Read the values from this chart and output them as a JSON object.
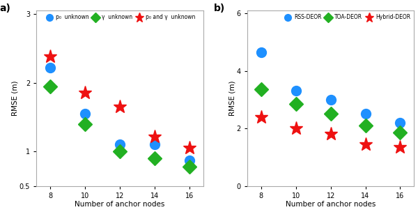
{
  "x": [
    8,
    10,
    12,
    14,
    16
  ],
  "panel_a": {
    "title": "a)",
    "xlabel": "Number of anchor nodes",
    "ylabel": "RMSE (m)",
    "ylim": [
      0.5,
      3.05
    ],
    "yticks": [
      0.5,
      1.0,
      2.0,
      3.0
    ],
    "yticklabels": [
      "0.5",
      "1",
      "2",
      "3"
    ],
    "series": [
      {
        "label": "p₀  unknown",
        "values": [
          2.22,
          1.55,
          1.1,
          1.1,
          0.87
        ],
        "color": "#1E90FF",
        "marker": "o",
        "markersize": 10
      },
      {
        "label": "γ  unknown",
        "values": [
          1.95,
          1.4,
          1.0,
          0.9,
          0.78
        ],
        "color": "#22B022",
        "marker": "D",
        "markersize": 10
      },
      {
        "label": "p₀ and γ  unknown",
        "values": [
          2.38,
          1.85,
          1.65,
          1.22,
          1.05
        ],
        "color": "#EE1111",
        "marker": "*",
        "markersize": 14
      }
    ],
    "legend_loc": "upper center",
    "legend_ncol": 3
  },
  "panel_b": {
    "title": "b)",
    "xlabel": "Number of anchor nodes",
    "ylabel": "RMSE (m)",
    "ylim": [
      0,
      6.1
    ],
    "yticks": [
      0,
      2,
      4,
      6
    ],
    "yticklabels": [
      "0",
      "2",
      "4",
      "6"
    ],
    "series": [
      {
        "label": "RSS-DEOR",
        "values": [
          4.65,
          3.3,
          3.0,
          2.5,
          2.2
        ],
        "color": "#1E90FF",
        "marker": "o",
        "markersize": 10
      },
      {
        "label": "TOA-DEOR",
        "values": [
          3.35,
          2.85,
          2.5,
          2.1,
          1.85
        ],
        "color": "#22B022",
        "marker": "D",
        "markersize": 10
      },
      {
        "label": "Hybrid-DEOR",
        "values": [
          2.4,
          2.0,
          1.8,
          1.45,
          1.35
        ],
        "color": "#EE1111",
        "marker": "*",
        "markersize": 14
      }
    ],
    "legend_loc": "upper right",
    "legend_ncol": 3
  },
  "bg_color": "#ffffff",
  "fig_color": "#ffffff",
  "spine_color": "#aaaaaa"
}
